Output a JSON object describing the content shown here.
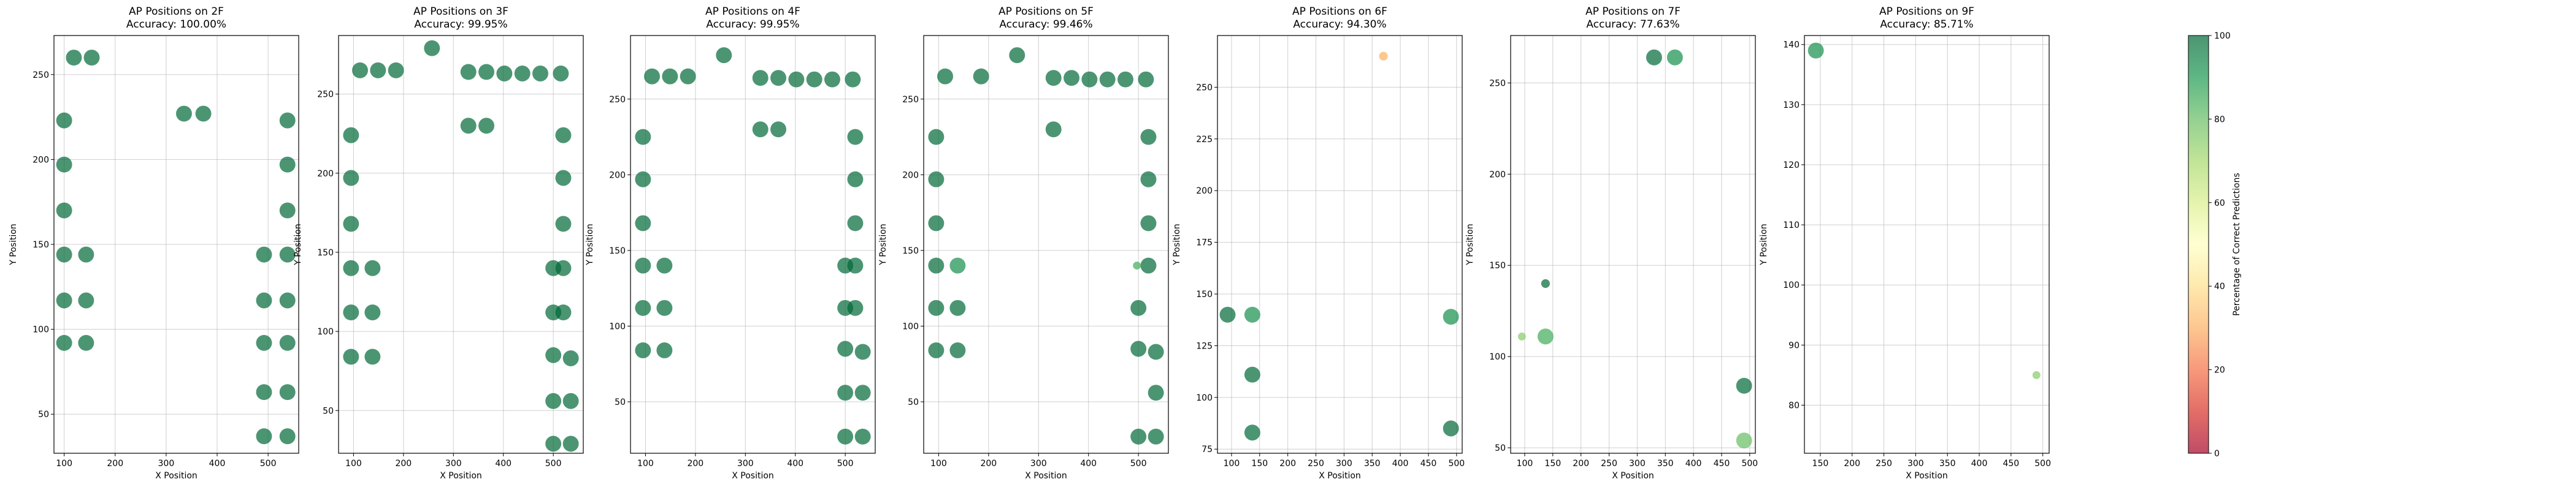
{
  "colorbar": {
    "label": "Percentage of Correct Predictions",
    "ticks": [
      0,
      20,
      40,
      60,
      80,
      100
    ],
    "colors": [
      "#a50026",
      "#d73027",
      "#f46d43",
      "#fdae61",
      "#fee08b",
      "#ffffbf",
      "#d9ef8b",
      "#a6d96a",
      "#66bd63",
      "#1a9850",
      "#006837"
    ],
    "alpha": 0.7
  },
  "chart_data": [
    {
      "type": "scatter",
      "title": "AP Positions on 2F",
      "subtitle": "Accuracy: 100.00%",
      "xlabel": "X Position",
      "ylabel": "Y Position",
      "xlim": [
        80,
        560
      ],
      "ylim": [
        27,
        273
      ],
      "xticks": [
        100,
        200,
        300,
        400,
        500
      ],
      "yticks": [
        50,
        100,
        150,
        200,
        250
      ],
      "grid": true,
      "points": [
        {
          "x": 119,
          "y": 260,
          "pct": 100,
          "n": 40
        },
        {
          "x": 154,
          "y": 260,
          "pct": 100,
          "n": 40
        },
        {
          "x": 335,
          "y": 227,
          "pct": 100,
          "n": 40
        },
        {
          "x": 373,
          "y": 227,
          "pct": 100,
          "n": 40
        },
        {
          "x": 100,
          "y": 223,
          "pct": 100,
          "n": 40
        },
        {
          "x": 100,
          "y": 197,
          "pct": 100,
          "n": 40
        },
        {
          "x": 100,
          "y": 170,
          "pct": 100,
          "n": 40
        },
        {
          "x": 100,
          "y": 144,
          "pct": 100,
          "n": 40
        },
        {
          "x": 143,
          "y": 144,
          "pct": 100,
          "n": 40
        },
        {
          "x": 100,
          "y": 117,
          "pct": 100,
          "n": 40
        },
        {
          "x": 143,
          "y": 117,
          "pct": 100,
          "n": 40
        },
        {
          "x": 100,
          "y": 92,
          "pct": 100,
          "n": 40
        },
        {
          "x": 143,
          "y": 92,
          "pct": 100,
          "n": 40
        },
        {
          "x": 538,
          "y": 223,
          "pct": 100,
          "n": 40
        },
        {
          "x": 538,
          "y": 197,
          "pct": 100,
          "n": 40
        },
        {
          "x": 538,
          "y": 170,
          "pct": 100,
          "n": 40
        },
        {
          "x": 538,
          "y": 144,
          "pct": 100,
          "n": 40
        },
        {
          "x": 492,
          "y": 144,
          "pct": 100,
          "n": 40
        },
        {
          "x": 538,
          "y": 117,
          "pct": 100,
          "n": 40
        },
        {
          "x": 492,
          "y": 117,
          "pct": 100,
          "n": 40
        },
        {
          "x": 538,
          "y": 92,
          "pct": 100,
          "n": 40
        },
        {
          "x": 492,
          "y": 92,
          "pct": 100,
          "n": 40
        },
        {
          "x": 538,
          "y": 63,
          "pct": 100,
          "n": 40
        },
        {
          "x": 492,
          "y": 63,
          "pct": 100,
          "n": 40
        },
        {
          "x": 538,
          "y": 37,
          "pct": 100,
          "n": 40
        },
        {
          "x": 492,
          "y": 37,
          "pct": 100,
          "n": 40
        }
      ]
    },
    {
      "type": "scatter",
      "title": "AP Positions on 3F",
      "subtitle": "Accuracy: 99.95%",
      "xlabel": "X Position",
      "ylabel": "Y Position",
      "xlim": [
        70,
        560
      ],
      "ylim": [
        23,
        287
      ],
      "xticks": [
        100,
        200,
        300,
        400,
        500
      ],
      "yticks": [
        50,
        100,
        150,
        200,
        250
      ],
      "grid": true,
      "points": [
        {
          "x": 113,
          "y": 265,
          "pct": 100,
          "n": 40
        },
        {
          "x": 149,
          "y": 265,
          "pct": 100,
          "n": 40
        },
        {
          "x": 185,
          "y": 265,
          "pct": 100,
          "n": 40
        },
        {
          "x": 257,
          "y": 279,
          "pct": 100,
          "n": 40
        },
        {
          "x": 330,
          "y": 264,
          "pct": 100,
          "n": 40
        },
        {
          "x": 366,
          "y": 264,
          "pct": 100,
          "n": 40
        },
        {
          "x": 402,
          "y": 263,
          "pct": 100,
          "n": 40
        },
        {
          "x": 438,
          "y": 263,
          "pct": 100,
          "n": 40
        },
        {
          "x": 474,
          "y": 263,
          "pct": 100,
          "n": 40
        },
        {
          "x": 515,
          "y": 263,
          "pct": 100,
          "n": 40
        },
        {
          "x": 330,
          "y": 230,
          "pct": 100,
          "n": 40
        },
        {
          "x": 366,
          "y": 230,
          "pct": 100,
          "n": 40
        },
        {
          "x": 95,
          "y": 224,
          "pct": 100,
          "n": 40
        },
        {
          "x": 95,
          "y": 197,
          "pct": 100,
          "n": 40
        },
        {
          "x": 95,
          "y": 168,
          "pct": 100,
          "n": 40
        },
        {
          "x": 95,
          "y": 140,
          "pct": 100,
          "n": 40
        },
        {
          "x": 138,
          "y": 140,
          "pct": 100,
          "n": 40
        },
        {
          "x": 95,
          "y": 112,
          "pct": 100,
          "n": 40
        },
        {
          "x": 138,
          "y": 112,
          "pct": 100,
          "n": 40
        },
        {
          "x": 95,
          "y": 84,
          "pct": 100,
          "n": 40
        },
        {
          "x": 138,
          "y": 84,
          "pct": 100,
          "n": 40
        },
        {
          "x": 520,
          "y": 224,
          "pct": 100,
          "n": 40
        },
        {
          "x": 520,
          "y": 197,
          "pct": 100,
          "n": 40
        },
        {
          "x": 520,
          "y": 168,
          "pct": 100,
          "n": 40
        },
        {
          "x": 520,
          "y": 140,
          "pct": 100,
          "n": 40
        },
        {
          "x": 500,
          "y": 140,
          "pct": 100,
          "n": 40
        },
        {
          "x": 520,
          "y": 112,
          "pct": 100,
          "n": 40
        },
        {
          "x": 500,
          "y": 112,
          "pct": 100,
          "n": 40
        },
        {
          "x": 500,
          "y": 85,
          "pct": 100,
          "n": 40
        },
        {
          "x": 535,
          "y": 83,
          "pct": 100,
          "n": 40
        },
        {
          "x": 500,
          "y": 56,
          "pct": 100,
          "n": 40
        },
        {
          "x": 535,
          "y": 56,
          "pct": 100,
          "n": 40
        },
        {
          "x": 500,
          "y": 29,
          "pct": 100,
          "n": 40
        },
        {
          "x": 535,
          "y": 29,
          "pct": 100,
          "n": 40
        }
      ]
    },
    {
      "type": "scatter",
      "title": "AP Positions on 4F",
      "subtitle": "Accuracy: 99.95%",
      "xlabel": "X Position",
      "ylabel": "Y Position",
      "xlim": [
        70,
        560
      ],
      "ylim": [
        16,
        292
      ],
      "xticks": [
        100,
        200,
        300,
        400,
        500
      ],
      "yticks": [
        50,
        100,
        150,
        200,
        250
      ],
      "grid": true,
      "points": [
        {
          "x": 113,
          "y": 265,
          "pct": 100,
          "n": 40
        },
        {
          "x": 149,
          "y": 265,
          "pct": 100,
          "n": 40
        },
        {
          "x": 185,
          "y": 265,
          "pct": 100,
          "n": 40
        },
        {
          "x": 257,
          "y": 279,
          "pct": 100,
          "n": 40
        },
        {
          "x": 330,
          "y": 264,
          "pct": 100,
          "n": 40
        },
        {
          "x": 366,
          "y": 264,
          "pct": 100,
          "n": 40
        },
        {
          "x": 402,
          "y": 263,
          "pct": 100,
          "n": 40
        },
        {
          "x": 438,
          "y": 263,
          "pct": 100,
          "n": 40
        },
        {
          "x": 474,
          "y": 263,
          "pct": 100,
          "n": 40
        },
        {
          "x": 515,
          "y": 263,
          "pct": 100,
          "n": 40
        },
        {
          "x": 330,
          "y": 230,
          "pct": 100,
          "n": 40
        },
        {
          "x": 366,
          "y": 230,
          "pct": 100,
          "n": 40
        },
        {
          "x": 95,
          "y": 225,
          "pct": 100,
          "n": 40
        },
        {
          "x": 95,
          "y": 197,
          "pct": 100,
          "n": 40
        },
        {
          "x": 95,
          "y": 168,
          "pct": 100,
          "n": 40
        },
        {
          "x": 95,
          "y": 140,
          "pct": 100,
          "n": 40
        },
        {
          "x": 138,
          "y": 140,
          "pct": 100,
          "n": 40
        },
        {
          "x": 95,
          "y": 112,
          "pct": 100,
          "n": 40
        },
        {
          "x": 138,
          "y": 112,
          "pct": 100,
          "n": 40
        },
        {
          "x": 95,
          "y": 84,
          "pct": 100,
          "n": 40
        },
        {
          "x": 138,
          "y": 84,
          "pct": 100,
          "n": 40
        },
        {
          "x": 520,
          "y": 225,
          "pct": 100,
          "n": 40
        },
        {
          "x": 520,
          "y": 197,
          "pct": 100,
          "n": 40
        },
        {
          "x": 520,
          "y": 168,
          "pct": 100,
          "n": 40
        },
        {
          "x": 520,
          "y": 140,
          "pct": 100,
          "n": 40
        },
        {
          "x": 500,
          "y": 140,
          "pct": 100,
          "n": 40
        },
        {
          "x": 520,
          "y": 112,
          "pct": 100,
          "n": 40
        },
        {
          "x": 500,
          "y": 112,
          "pct": 100,
          "n": 40
        },
        {
          "x": 500,
          "y": 85,
          "pct": 100,
          "n": 40
        },
        {
          "x": 535,
          "y": 83,
          "pct": 100,
          "n": 40
        },
        {
          "x": 500,
          "y": 56,
          "pct": 100,
          "n": 40
        },
        {
          "x": 535,
          "y": 56,
          "pct": 100,
          "n": 40
        },
        {
          "x": 500,
          "y": 27,
          "pct": 100,
          "n": 40
        },
        {
          "x": 535,
          "y": 27,
          "pct": 100,
          "n": 40
        }
      ]
    },
    {
      "type": "scatter",
      "title": "AP Positions on 5F",
      "subtitle": "Accuracy: 99.46%",
      "xlabel": "X Position",
      "ylabel": "Y Position",
      "xlim": [
        70,
        560
      ],
      "ylim": [
        16,
        292
      ],
      "xticks": [
        100,
        200,
        300,
        400,
        500
      ],
      "yticks": [
        50,
        100,
        150,
        200,
        250
      ],
      "grid": true,
      "points": [
        {
          "x": 113,
          "y": 265,
          "pct": 100,
          "n": 40
        },
        {
          "x": 185,
          "y": 265,
          "pct": 100,
          "n": 40
        },
        {
          "x": 257,
          "y": 279,
          "pct": 100,
          "n": 40
        },
        {
          "x": 330,
          "y": 264,
          "pct": 100,
          "n": 40
        },
        {
          "x": 366,
          "y": 264,
          "pct": 100,
          "n": 40
        },
        {
          "x": 402,
          "y": 263,
          "pct": 100,
          "n": 40
        },
        {
          "x": 438,
          "y": 263,
          "pct": 100,
          "n": 40
        },
        {
          "x": 474,
          "y": 263,
          "pct": 100,
          "n": 40
        },
        {
          "x": 515,
          "y": 263,
          "pct": 100,
          "n": 40
        },
        {
          "x": 330,
          "y": 230,
          "pct": 100,
          "n": 40
        },
        {
          "x": 95,
          "y": 225,
          "pct": 100,
          "n": 40
        },
        {
          "x": 95,
          "y": 197,
          "pct": 100,
          "n": 40
        },
        {
          "x": 95,
          "y": 168,
          "pct": 100,
          "n": 40
        },
        {
          "x": 95,
          "y": 140,
          "pct": 100,
          "n": 40
        },
        {
          "x": 138,
          "y": 140,
          "pct": 92,
          "n": 40
        },
        {
          "x": 95,
          "y": 112,
          "pct": 100,
          "n": 40
        },
        {
          "x": 138,
          "y": 112,
          "pct": 100,
          "n": 40
        },
        {
          "x": 95,
          "y": 84,
          "pct": 100,
          "n": 40
        },
        {
          "x": 138,
          "y": 84,
          "pct": 100,
          "n": 40
        },
        {
          "x": 520,
          "y": 225,
          "pct": 100,
          "n": 40
        },
        {
          "x": 520,
          "y": 197,
          "pct": 100,
          "n": 40
        },
        {
          "x": 520,
          "y": 168,
          "pct": 100,
          "n": 40
        },
        {
          "x": 520,
          "y": 140,
          "pct": 100,
          "n": 40
        },
        {
          "x": 497,
          "y": 140,
          "pct": 85,
          "n": 10
        },
        {
          "x": 500,
          "y": 112,
          "pct": 100,
          "n": 40
        },
        {
          "x": 500,
          "y": 85,
          "pct": 100,
          "n": 40
        },
        {
          "x": 535,
          "y": 83,
          "pct": 100,
          "n": 40
        },
        {
          "x": 535,
          "y": 56,
          "pct": 100,
          "n": 40
        },
        {
          "x": 500,
          "y": 27,
          "pct": 100,
          "n": 40
        },
        {
          "x": 535,
          "y": 27,
          "pct": 100,
          "n": 40
        }
      ]
    },
    {
      "type": "scatter",
      "title": "AP Positions on 6F",
      "subtitle": "Accuracy: 94.30%",
      "xlabel": "X Position",
      "ylabel": "Y Position",
      "xlim": [
        75,
        510
      ],
      "ylim": [
        73,
        275
      ],
      "xticks": [
        100,
        150,
        200,
        250,
        300,
        350,
        400,
        450,
        500
      ],
      "yticks": [
        75,
        100,
        125,
        150,
        175,
        200,
        225,
        250
      ],
      "grid": true,
      "points": [
        {
          "x": 370,
          "y": 265,
          "pct": 30,
          "n": 12
        },
        {
          "x": 93,
          "y": 140,
          "pct": 100,
          "n": 40
        },
        {
          "x": 137,
          "y": 140,
          "pct": 92,
          "n": 40
        },
        {
          "x": 137,
          "y": 111,
          "pct": 100,
          "n": 40
        },
        {
          "x": 137,
          "y": 83,
          "pct": 100,
          "n": 40
        },
        {
          "x": 490,
          "y": 139,
          "pct": 92,
          "n": 40
        },
        {
          "x": 490,
          "y": 85,
          "pct": 100,
          "n": 40
        }
      ]
    },
    {
      "type": "scatter",
      "title": "AP Positions on 7F",
      "subtitle": "Accuracy: 77.63%",
      "xlabel": "X Position",
      "ylabel": "Y Position",
      "xlim": [
        75,
        510
      ],
      "ylim": [
        47,
        276
      ],
      "xticks": [
        100,
        150,
        200,
        250,
        300,
        350,
        400,
        450,
        500
      ],
      "yticks": [
        50,
        100,
        150,
        200,
        250
      ],
      "grid": true,
      "points": [
        {
          "x": 330,
          "y": 264,
          "pct": 100,
          "n": 40
        },
        {
          "x": 367,
          "y": 264,
          "pct": 92,
          "n": 40
        },
        {
          "x": 137,
          "y": 140,
          "pct": 100,
          "n": 12
        },
        {
          "x": 95,
          "y": 111,
          "pct": 75,
          "n": 10
        },
        {
          "x": 137,
          "y": 111,
          "pct": 85,
          "n": 40
        },
        {
          "x": 490,
          "y": 84,
          "pct": 100,
          "n": 40
        },
        {
          "x": 490,
          "y": 54,
          "pct": 80,
          "n": 40
        }
      ]
    },
    {
      "type": "scatter",
      "title": "AP Positions on 9F",
      "subtitle": "Accuracy: 85.71%",
      "xlabel": "X Position",
      "ylabel": "Y Position",
      "xlim": [
        125,
        510
      ],
      "ylim": [
        72,
        141.5
      ],
      "xticks": [
        150,
        200,
        250,
        300,
        350,
        400,
        450,
        500
      ],
      "yticks": [
        80,
        90,
        100,
        110,
        120,
        130,
        140
      ],
      "grid": true,
      "points": [
        {
          "x": 143,
          "y": 139,
          "pct": 92,
          "n": 40
        },
        {
          "x": 490,
          "y": 85,
          "pct": 75,
          "n": 10
        }
      ]
    }
  ]
}
